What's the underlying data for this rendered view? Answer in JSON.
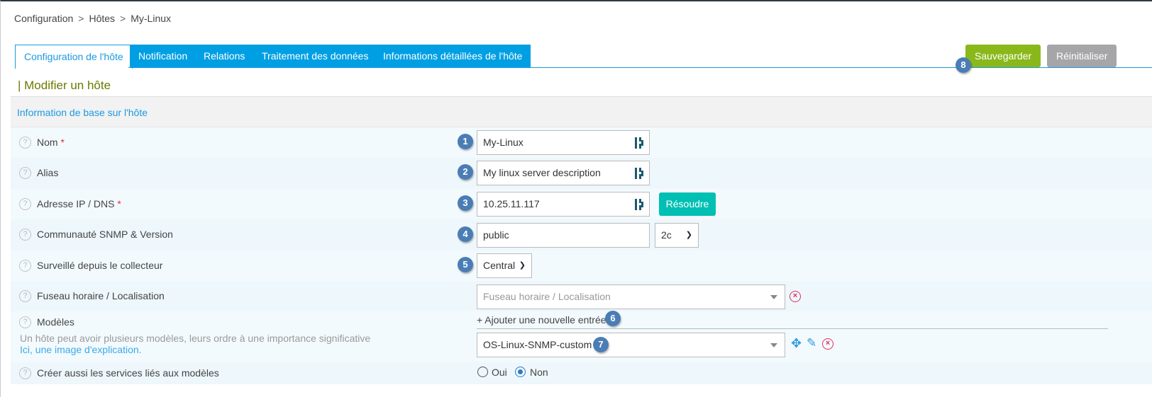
{
  "breadcrumb": [
    "Configuration",
    "Hôtes",
    "My-Linux"
  ],
  "breadcrumb_sep": ">",
  "tabs": [
    {
      "label": "Configuration de l'hôte",
      "active": true
    },
    {
      "label": "Notification"
    },
    {
      "label": "Relations"
    },
    {
      "label": "Traitement des données"
    },
    {
      "label": "Informations détaillées de l'hôte"
    }
  ],
  "actions": {
    "save": "Sauvegarder",
    "reset": "Réinitialiser",
    "save_color": "#8ab81a",
    "reset_color": "#a6a6a8"
  },
  "page_title": "| Modifier un hôte",
  "section_title": "Information de base sur l'hôte",
  "help_glyph": "?",
  "required_mark": "*",
  "form": {
    "name": {
      "label": "Nom",
      "badge": "1",
      "value": "My-Linux"
    },
    "alias": {
      "label": "Alias",
      "badge": "2",
      "value": "My linux server description"
    },
    "address": {
      "label": "Adresse IP / DNS",
      "badge": "3",
      "value": "10.25.11.117",
      "resolve": "Résoudre",
      "resolve_color": "#00bfb3"
    },
    "snmp": {
      "label": "Communauté SNMP & Version",
      "badge": "4",
      "value": "public",
      "version": "2c"
    },
    "poller": {
      "label": "Surveillé depuis le collecteur",
      "badge": "5",
      "value": "Central"
    },
    "timezone": {
      "label": "Fuseau horaire / Localisation",
      "placeholder": "Fuseau horaire / Localisation"
    },
    "templates": {
      "label": "Modèles",
      "hint": "Un hôte peut avoir plusieurs modèles, leurs ordre à une importance significative",
      "link": "Ici, une image d'explication.",
      "add": "+ Ajouter une nouvelle entrée",
      "add_badge": "6",
      "value": "OS-Linux-SNMP-custom",
      "value_badge": "7"
    },
    "create_services": {
      "label": "Créer aussi les services liés aux modèles",
      "options": [
        "Oui",
        "Non"
      ],
      "selected": "Non"
    }
  },
  "save_badge": "8"
}
